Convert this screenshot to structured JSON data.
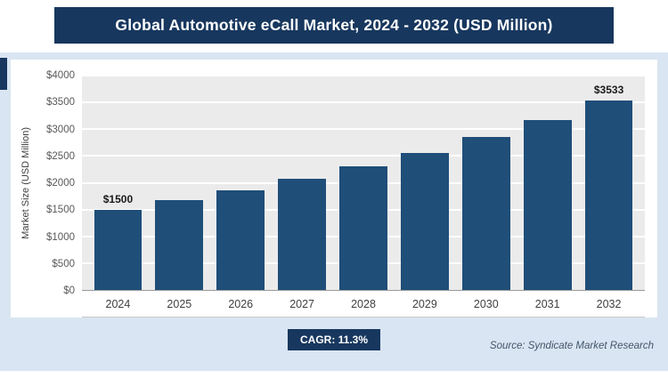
{
  "title": "Global Automotive eCall Market, 2024 - 2032 (USD Million)",
  "colors": {
    "navy": "#17375e",
    "bar": "#1f4e79",
    "page_background": "#d9e5f2",
    "plot_background": "#ebebeb"
  },
  "chart_data": {
    "type": "bar",
    "title": "Global Automotive eCall Market, 2024 - 2032 (USD Million)",
    "categories": [
      "2024",
      "2025",
      "2026",
      "2027",
      "2028",
      "2029",
      "2030",
      "2031",
      "2032"
    ],
    "values": [
      1500,
      1670,
      1858,
      2068,
      2302,
      2562,
      2851,
      3174,
      3533
    ],
    "bar_labels": [
      "$1500",
      "",
      "",
      "",
      "",
      "",
      "",
      "",
      "$3533"
    ],
    "xlabel": "",
    "ylabel": "Market Size (USD Million)",
    "ylim": [
      0,
      4000
    ],
    "y_tick_step": 500,
    "y_ticks": [
      "$0",
      "$500",
      "$1000",
      "$1500",
      "$2000",
      "$2500",
      "$3000",
      "$3500",
      "$4000"
    ],
    "grid": "horizontal-white-lines",
    "legend": "none"
  },
  "footer": {
    "cagr_label": "CAGR: 11.3%",
    "source": "Source: Syndicate Market Research"
  }
}
